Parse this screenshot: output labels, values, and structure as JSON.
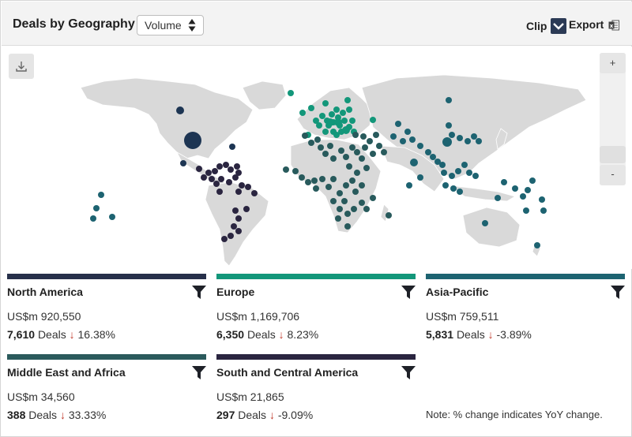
{
  "header": {
    "title": "Deals by Geography",
    "metric_select": {
      "value": "Volume"
    },
    "clip_label": "Clip",
    "export_label": "Export"
  },
  "map": {
    "zoom_in_label": "+",
    "zoom_out_label": "-"
  },
  "regions": [
    {
      "name": "North America",
      "value": "US$m 920,550",
      "deals_count": "7,610",
      "deals_word": "Deals",
      "arrow": "↓",
      "change": "16.38%",
      "color": "#27304a"
    },
    {
      "name": "Europe",
      "value": "US$m 1,169,706",
      "deals_count": "6,350",
      "deals_word": "Deals",
      "arrow": "↓",
      "change": "8.23%",
      "color": "#13977a"
    },
    {
      "name": "Asia-Pacific",
      "value": "US$m 759,511",
      "deals_count": "5,831",
      "deals_word": "Deals",
      "arrow": "↓",
      "change": "-3.89%",
      "color": "#1d6371"
    },
    {
      "name": "Middle East and Africa",
      "value": "US$m 34,560",
      "deals_count": "388",
      "deals_word": "Deals",
      "arrow": "↓",
      "change": "33.33%",
      "color": "#2b5a5c"
    },
    {
      "name": "South and Central America",
      "value": "US$m 21,865",
      "deals_count": "297",
      "deals_word": "Deals",
      "arrow": "↓",
      "change": "-9.09%",
      "color": "#2a2540"
    }
  ],
  "note": "Note: % change indicates YoY change.",
  "colors": {
    "north_america": "#1d3553",
    "europe": "#13977a",
    "asia_pacific": "#1d6371",
    "middle_east_africa": "#285a5c",
    "south_central_america": "#2a2540",
    "land": "#d9d9d9",
    "down_arrow": "#c0392b"
  }
}
